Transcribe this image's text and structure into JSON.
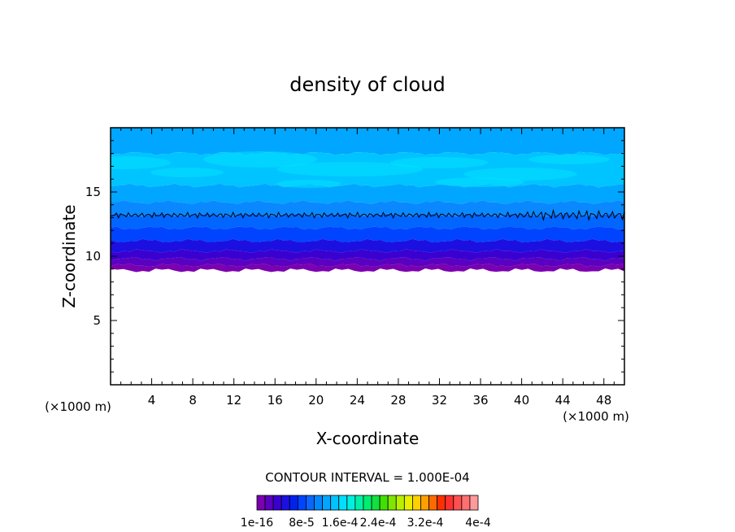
{
  "chart_data": {
    "type": "heatmap",
    "title": "density of cloud",
    "xlabel": "X-coordinate",
    "ylabel": "Z-coordinate",
    "x_unit": "(×1000 m)",
    "y_unit": "(×1000 m)",
    "xlim": [
      0,
      50
    ],
    "ylim": [
      0,
      20
    ],
    "x_ticks": [
      4,
      8,
      12,
      16,
      20,
      24,
      28,
      32,
      36,
      40,
      44,
      48
    ],
    "y_ticks": [
      5,
      10,
      15
    ],
    "contour_interval_text": "CONTOUR INTERVAL = 1.000E-04",
    "colorbar_labels": [
      "1e-16",
      "8e-5",
      "1.6e-4",
      "2.4e-4",
      "3.2e-4",
      "4e-4"
    ],
    "colorbar_colors": [
      "#7a00b0",
      "#5a00c0",
      "#3a00d0",
      "#1c10e0",
      "#0022ee",
      "#0044ff",
      "#0a66ff",
      "#0088ff",
      "#00a6ff",
      "#00c4ff",
      "#00dfff",
      "#00f0e0",
      "#00f0a8",
      "#00ee70",
      "#10e040",
      "#40e000",
      "#80e600",
      "#b8f000",
      "#e8f000",
      "#ffd000",
      "#ffa000",
      "#ff6a00",
      "#ff3000",
      "#ff3030",
      "#ff5050",
      "#ff7070",
      "#ff9a9a"
    ],
    "layers": [
      {
        "z_bottom": 18.0,
        "z_top": 20.0,
        "color": "#00a6ff"
      },
      {
        "z_bottom": 15.5,
        "z_top": 18.0,
        "color": "#00c4ff"
      },
      {
        "z_bottom": 14.2,
        "z_top": 15.5,
        "color": "#00a6ff"
      },
      {
        "z_bottom": 13.2,
        "z_top": 14.2,
        "color": "#0a88ff"
      },
      {
        "z_bottom": 12.2,
        "z_top": 13.2,
        "color": "#0066ff"
      },
      {
        "z_bottom": 11.2,
        "z_top": 12.2,
        "color": "#0044ff"
      },
      {
        "z_bottom": 10.4,
        "z_top": 11.2,
        "color": "#1c10e0"
      },
      {
        "z_bottom": 9.8,
        "z_top": 10.4,
        "color": "#3a00d0"
      },
      {
        "z_bottom": 9.3,
        "z_top": 9.8,
        "color": "#5a00c0"
      },
      {
        "z_bottom": 8.9,
        "z_top": 9.3,
        "color": "#7a00b0"
      }
    ],
    "contour_level_z": 13.2,
    "grid": false
  }
}
